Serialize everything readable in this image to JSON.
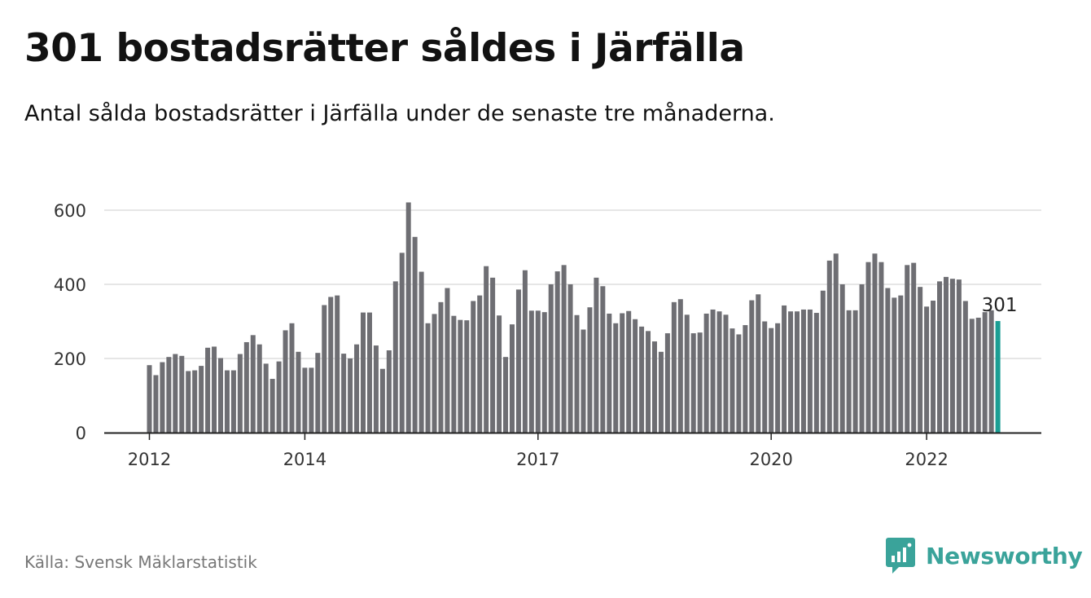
{
  "title": "301 bostadsrätter såldes i Järfälla",
  "subtitle": "Antal sålda bostadsrätter i Järfälla under de senaste tre månaderna.",
  "source": "Källa: Svensk Mäklarstatistik",
  "brand": {
    "name": "Newsworthy",
    "icon": "newsworthy-logo-icon",
    "color": "#3aa39a"
  },
  "colors": {
    "bar": "#6e6e73",
    "highlight": "#1a9e94",
    "grid": "#dddddd",
    "axis": "#222222"
  },
  "chart_data": {
    "type": "bar",
    "ylim": [
      0,
      620
    ],
    "yticks": [
      0,
      200,
      400,
      600
    ],
    "grid": true,
    "x_start": "2012-01",
    "xticks": [
      {
        "label": "2012",
        "index": 0
      },
      {
        "label": "2014",
        "index": 24
      },
      {
        "label": "2017",
        "index": 60
      },
      {
        "label": "2020",
        "index": 96
      },
      {
        "label": "2022",
        "index": 120
      }
    ],
    "values": [
      182,
      155,
      190,
      204,
      212,
      207,
      166,
      168,
      180,
      229,
      232,
      201,
      168,
      168,
      212,
      244,
      263,
      238,
      186,
      145,
      192,
      276,
      295,
      218,
      175,
      175,
      215,
      344,
      366,
      370,
      213,
      200,
      238,
      324,
      324,
      235,
      172,
      222,
      408,
      485,
      621,
      528,
      434,
      295,
      320,
      352,
      390,
      315,
      304,
      303,
      355,
      370,
      449,
      418,
      316,
      204,
      292,
      386,
      438,
      329,
      329,
      325,
      400,
      435,
      452,
      400,
      317,
      278,
      338,
      418,
      395,
      321,
      295,
      322,
      328,
      306,
      286,
      274,
      246,
      218,
      268,
      352,
      360,
      318,
      268,
      270,
      321,
      332,
      327,
      318,
      281,
      265,
      290,
      357,
      373,
      300,
      282,
      295,
      343,
      327,
      327,
      332,
      332,
      323,
      383,
      464,
      483,
      400,
      330,
      330,
      400,
      460,
      483,
      460,
      390,
      364,
      370,
      452,
      458,
      393,
      340,
      356,
      408,
      420,
      415,
      413,
      355,
      307,
      310,
      325,
      330,
      301
    ],
    "highlight_index": 131,
    "annotations": [
      {
        "index": 131,
        "label": "301"
      }
    ]
  }
}
